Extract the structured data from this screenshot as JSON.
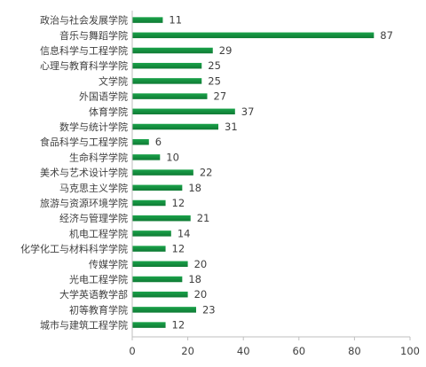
{
  "chart_data": {
    "type": "bar",
    "orientation": "horizontal",
    "categories": [
      "政治与社会发展学院",
      "音乐与舞蹈学院",
      "信息科学与工程学院",
      "心理与教育科学学院",
      "文学院",
      "外国语学院",
      "体育学院",
      "数学与统计学院",
      "食品科学与工程学院",
      "生命科学学院",
      "美术与艺术设计学院",
      "马克思主义学院",
      "旅游与资源环境学院",
      "经济与管理学院",
      "机电工程学院",
      "化学化工与材料科学学院",
      "传媒学院",
      "光电工程学院",
      "大学英语教学部",
      "初等教育学院",
      "城市与建筑工程学院"
    ],
    "values": [
      11,
      87,
      29,
      25,
      25,
      27,
      37,
      31,
      6,
      10,
      22,
      18,
      12,
      21,
      14,
      12,
      20,
      18,
      20,
      23,
      12
    ],
    "xlim": [
      0,
      100
    ],
    "xticks": [
      0,
      20,
      40,
      60,
      80,
      100
    ],
    "grid": false,
    "legend": "none",
    "data_labels": true,
    "bar_color": "#1aa34a",
    "bar_color_dark": "#0f7a34"
  }
}
